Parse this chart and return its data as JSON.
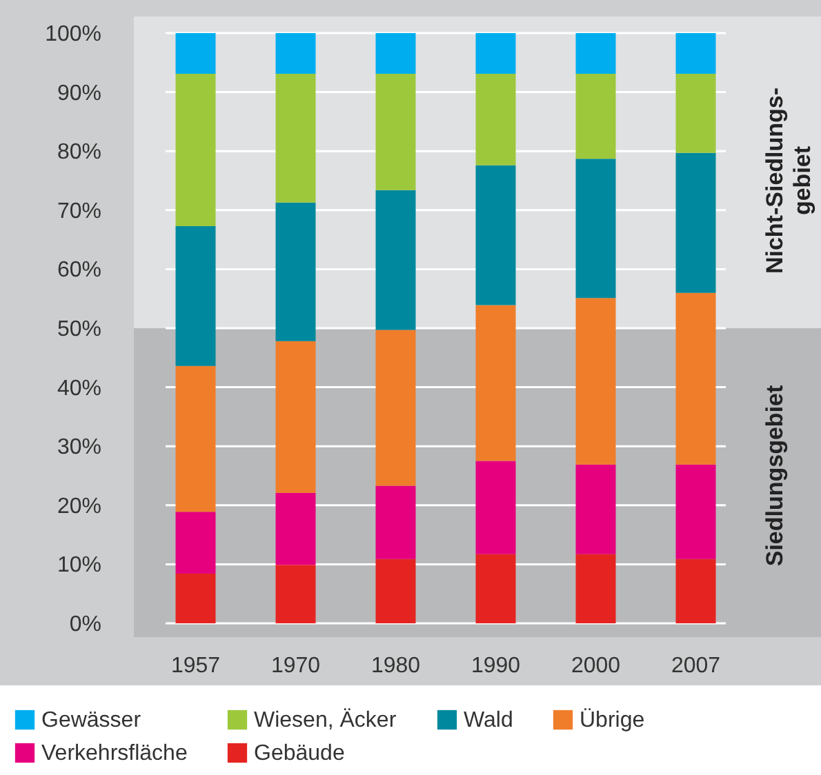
{
  "chart_data": {
    "type": "bar",
    "stacked": true,
    "categories": [
      "1957",
      "1970",
      "1980",
      "1990",
      "2000",
      "2007"
    ],
    "series": [
      {
        "name": "Gebäude",
        "color": "#e52421",
        "values": [
          8.4,
          9.9,
          10.9,
          11.7,
          11.7,
          10.9
        ]
      },
      {
        "name": "Verkehrsfläche",
        "color": "#e6007e",
        "values": [
          10.5,
          12.2,
          12.4,
          15.8,
          15.2,
          16.0
        ]
      },
      {
        "name": "Übrige",
        "color": "#f07d2a",
        "values": [
          24.7,
          25.7,
          26.4,
          26.4,
          28.2,
          29.1
        ]
      },
      {
        "name": "Wald",
        "color": "#00899e",
        "values": [
          23.7,
          23.5,
          23.7,
          23.7,
          23.6,
          23.7
        ]
      },
      {
        "name": "Wiesen, Äcker",
        "color": "#9dc83c",
        "values": [
          25.8,
          21.8,
          19.7,
          15.5,
          14.4,
          13.4
        ]
      },
      {
        "name": "Gewässer",
        "color": "#00aeef",
        "values": [
          6.9,
          6.9,
          6.9,
          6.9,
          6.9,
          6.9
        ]
      }
    ],
    "ylim": [
      0,
      100
    ],
    "yticks": [
      {
        "value": 0,
        "label": "0%"
      },
      {
        "value": 10,
        "label": "10%"
      },
      {
        "value": 20,
        "label": "20%"
      },
      {
        "value": 30,
        "label": "30%"
      },
      {
        "value": 40,
        "label": "40%"
      },
      {
        "value": 50,
        "label": "50%"
      },
      {
        "value": 60,
        "label": "60%"
      },
      {
        "value": 70,
        "label": "70%"
      },
      {
        "value": 80,
        "label": "80%"
      },
      {
        "value": 90,
        "label": "90%"
      },
      {
        "value": 100,
        "label": "100%"
      }
    ],
    "bands": [
      {
        "axis": "y",
        "from": 0,
        "to": 50,
        "label": "Siedlungsgebiet",
        "color": "#b8b9bb"
      },
      {
        "axis": "y",
        "from": 50,
        "to": 100,
        "label": "Nicht-Siedlungs-\ngebiet",
        "color": "#e0e1e3"
      }
    ],
    "grid": "y",
    "legend": "bottom"
  }
}
